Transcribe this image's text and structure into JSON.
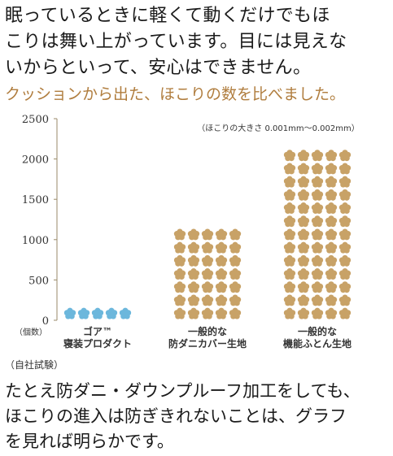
{
  "intro": {
    "lines": [
      "眠っているときに軽くて動くだけでもほ",
      "こりは舞い上がっています。目には見えな",
      "いからといって、安心はできません。"
    ]
  },
  "headline": "クッションから出た、ほこりの数を比べました。",
  "chart_data": {
    "type": "bar",
    "title": "",
    "annotation": "（ほこりの大きさ 0.001mm～0.002mm）",
    "y_unit_label": "（個数）",
    "ylabel": "",
    "xlabel": "",
    "ylim": [
      0,
      2500
    ],
    "y_ticks": [
      "0",
      "500",
      "1000",
      "1500",
      "2000",
      "2500"
    ],
    "grid": false,
    "categories": [
      [
        "ゴア™",
        "寝装プロダクト"
      ],
      [
        "一般的な",
        "防ダニカバー生地"
      ],
      [
        "一般的な",
        "機能ふとん生地"
      ]
    ],
    "values": [
      130,
      1150,
      2150
    ],
    "bar_colors": [
      "#6cb7dc",
      "#c8a267",
      "#c8a267"
    ],
    "icon": "flower-icon"
  },
  "note": "（自社試験）",
  "outro": {
    "lines": [
      "たとえ防ダニ・ダウンプルーフ加工をしても、",
      "ほこりの進入は防ぎきれないことは、グラフ",
      "を見れば明らかです。"
    ]
  }
}
